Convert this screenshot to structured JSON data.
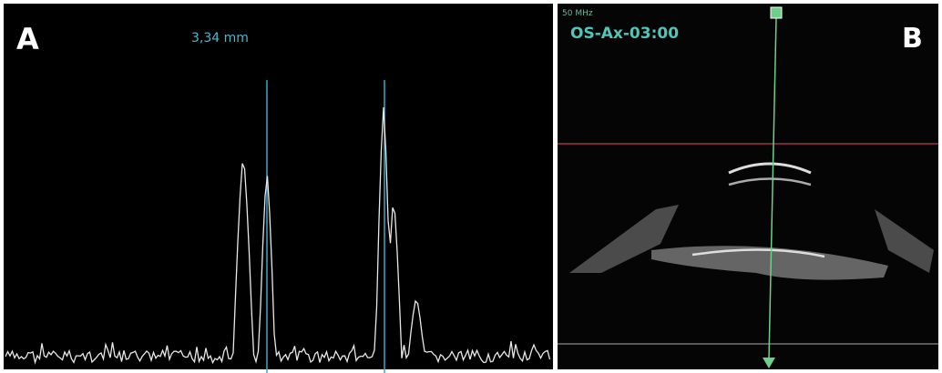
{
  "panel_a": {
    "label": "A",
    "measurement": "3,34 mm"
  },
  "panel_b": {
    "label": "B",
    "frequency": "50 MHz",
    "scan_label": "OS-Ax-03:00"
  }
}
